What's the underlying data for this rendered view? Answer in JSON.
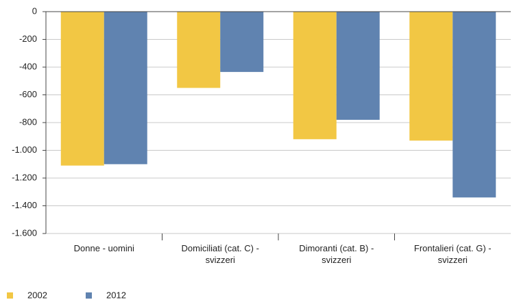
{
  "chart_data": {
    "type": "bar",
    "categories": [
      "Donne - uomini",
      "Domiciliati (cat. C) - svizzeri",
      "Dimoranti (cat. B) - svizzeri",
      "Frontalieri (cat. G) - svizzeri"
    ],
    "series": [
      {
        "name": "2002",
        "color": "#f2c744",
        "values": [
          -1110,
          -550,
          -920,
          -930
        ]
      },
      {
        "name": "2012",
        "color": "#6083b0",
        "values": [
          -1100,
          -435,
          -780,
          -1340
        ]
      }
    ],
    "ylim": [
      -1600,
      0
    ],
    "yticks": [
      0,
      -200,
      -400,
      -600,
      -800,
      {
        "value": -1000,
        "label": "-1.000"
      },
      {
        "value": -1200,
        "label": "-1.200"
      },
      {
        "value": -1400,
        "label": "-1.400"
      },
      {
        "value": -1600,
        "label": "-1.600"
      }
    ],
    "grid": true
  }
}
